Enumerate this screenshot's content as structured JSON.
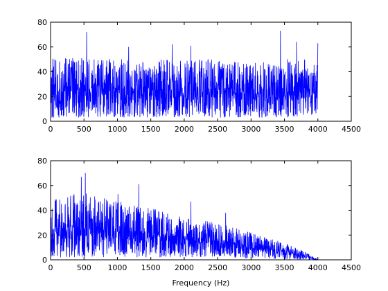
{
  "chart_data": [
    {
      "type": "line",
      "title": "",
      "xlabel": "",
      "ylabel": "",
      "xlim": [
        0,
        4500
      ],
      "ylim": [
        0,
        80
      ],
      "x_ticks": [
        0,
        500,
        1000,
        1500,
        2000,
        2500,
        3000,
        3500,
        4000,
        4500
      ],
      "y_ticks": [
        0,
        20,
        40,
        60,
        80
      ],
      "grid": false,
      "series": [
        {
          "color": "#0000ff",
          "x_range": [
            0,
            4000
          ],
          "envelope": {
            "x": [
              0,
              500,
              1000,
              1500,
              2000,
              2500,
              3000,
              3500,
              4000
            ],
            "upper": [
              50,
              52,
              50,
              50,
              50,
              50,
              48,
              50,
              50
            ],
            "lower": [
              3,
              3,
              3,
              3,
              3,
              3,
              3,
              3,
              5
            ]
          },
          "peaks": [
            {
              "x": 540,
              "y": 72
            },
            {
              "x": 3440,
              "y": 73
            },
            {
              "x": 3680,
              "y": 64
            },
            {
              "x": 2100,
              "y": 61
            },
            {
              "x": 1170,
              "y": 60
            },
            {
              "x": 1820,
              "y": 62
            },
            {
              "x": 4000,
              "y": 63
            }
          ]
        }
      ]
    },
    {
      "type": "line",
      "title": "",
      "xlabel": "Frequency (Hz)",
      "ylabel": "",
      "xlim": [
        0,
        4500
      ],
      "ylim": [
        0,
        80
      ],
      "x_ticks": [
        0,
        500,
        1000,
        1500,
        2000,
        2500,
        3000,
        3500,
        4000,
        4500
      ],
      "y_ticks": [
        0,
        20,
        40,
        60,
        80
      ],
      "grid": false,
      "series": [
        {
          "color": "#0000ff",
          "x_range": [
            0,
            4000
          ],
          "envelope": {
            "x": [
              0,
              500,
              1000,
              1500,
              2000,
              2500,
              3000,
              3500,
              3800,
              4000
            ],
            "upper": [
              50,
              55,
              48,
              42,
              34,
              30,
              22,
              14,
              7,
              0
            ],
            "lower": [
              2,
              2,
              2,
              2,
              2,
              2,
              1,
              0.5,
              0,
              0
            ]
          },
          "peaks": [
            {
              "x": 520,
              "y": 70
            },
            {
              "x": 460,
              "y": 67
            },
            {
              "x": 1320,
              "y": 61
            },
            {
              "x": 1010,
              "y": 53
            },
            {
              "x": 2100,
              "y": 47
            },
            {
              "x": 2620,
              "y": 38
            }
          ]
        }
      ]
    }
  ]
}
